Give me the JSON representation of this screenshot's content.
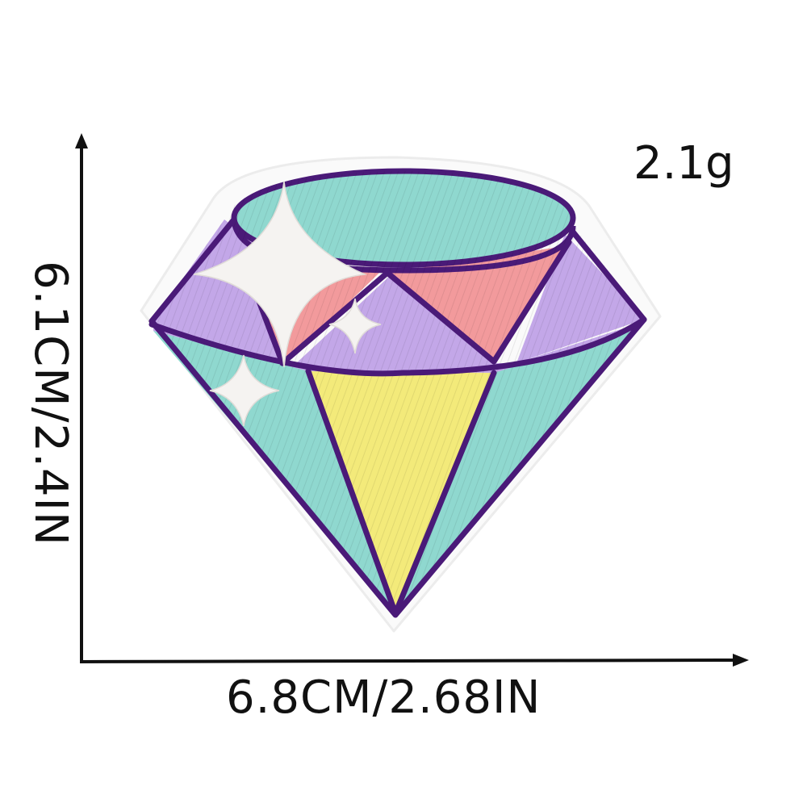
{
  "product": {
    "weight": "2.1g",
    "width_dimension": "6.8CM/2.68IN",
    "height_dimension": "6.1CM/2.4IN",
    "image_icon": "embroidered-diamond-patch-icon"
  },
  "colors": {
    "outline": "#4a1a78",
    "border": "#ffffff",
    "mint": "#8fd8cf",
    "lavender": "#c3a7e8",
    "pink": "#f29a9c",
    "yellow": "#f3ea7a",
    "sparkle": "#f5f3f1",
    "text": "#111111",
    "axis": "#111111"
  }
}
